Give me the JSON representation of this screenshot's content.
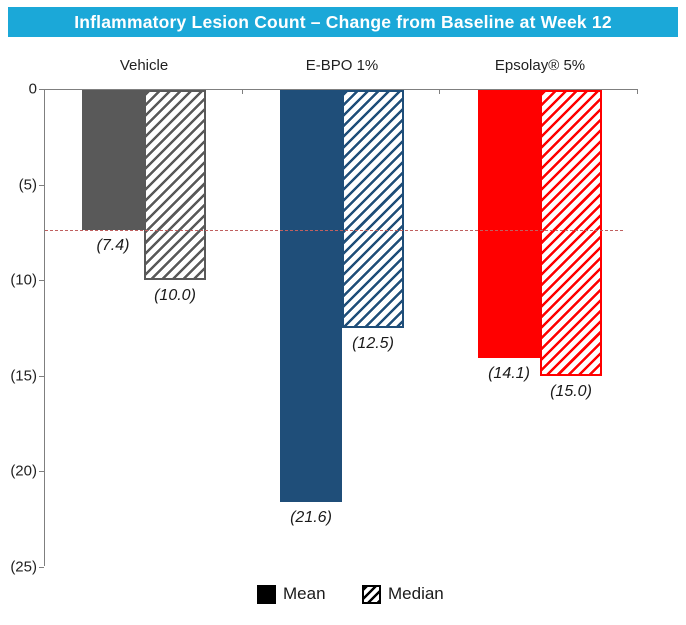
{
  "title": "Inflammatory Lesion Count – Change from Baseline at Week 12",
  "legend": {
    "mean_label": "Mean",
    "median_label": "Median"
  },
  "colors": {
    "header_bg": "#1BA8D8",
    "header_text": "#FFFFFF",
    "axis": "#7F7F7F",
    "reference_line": "#C06060",
    "legend_swatch": "#000000",
    "vehicle": "#595959",
    "ebpo": "#1F4E79",
    "epsolay": "#FF0000"
  },
  "chart_data": {
    "type": "bar",
    "title": "Inflammatory Lesion Count – Change from Baseline at Week 12",
    "categories": [
      "Vehicle",
      "E-BPO 1%",
      "Epsolay® 5%"
    ],
    "group_colors": [
      "#595959",
      "#1F4E79",
      "#FF0000"
    ],
    "series": [
      {
        "name": "Mean",
        "style": "solid",
        "values": [
          -7.4,
          -21.6,
          -14.1
        ],
        "data_labels": [
          "(7.4)",
          "(21.6)",
          "(14.1)"
        ]
      },
      {
        "name": "Median",
        "style": "hatched",
        "values": [
          -10.0,
          -12.5,
          -15.0
        ],
        "data_labels": [
          "(10.0)",
          "(12.5)",
          "(15.0)"
        ]
      }
    ],
    "reference_line": {
      "value": -7.4,
      "style": "dashed",
      "color": "#C06060"
    },
    "ylim": [
      -25,
      0
    ],
    "ytick_values": [
      0,
      -5,
      -10,
      -15,
      -20,
      -25
    ],
    "ytick_labels": [
      "0",
      "(5)",
      "(10)",
      "(15)",
      "(20)",
      "(25)"
    ],
    "xlabel": "",
    "ylabel": "",
    "grid": false,
    "legend_position": "bottom",
    "bar_direction": "downward-from-zero"
  }
}
